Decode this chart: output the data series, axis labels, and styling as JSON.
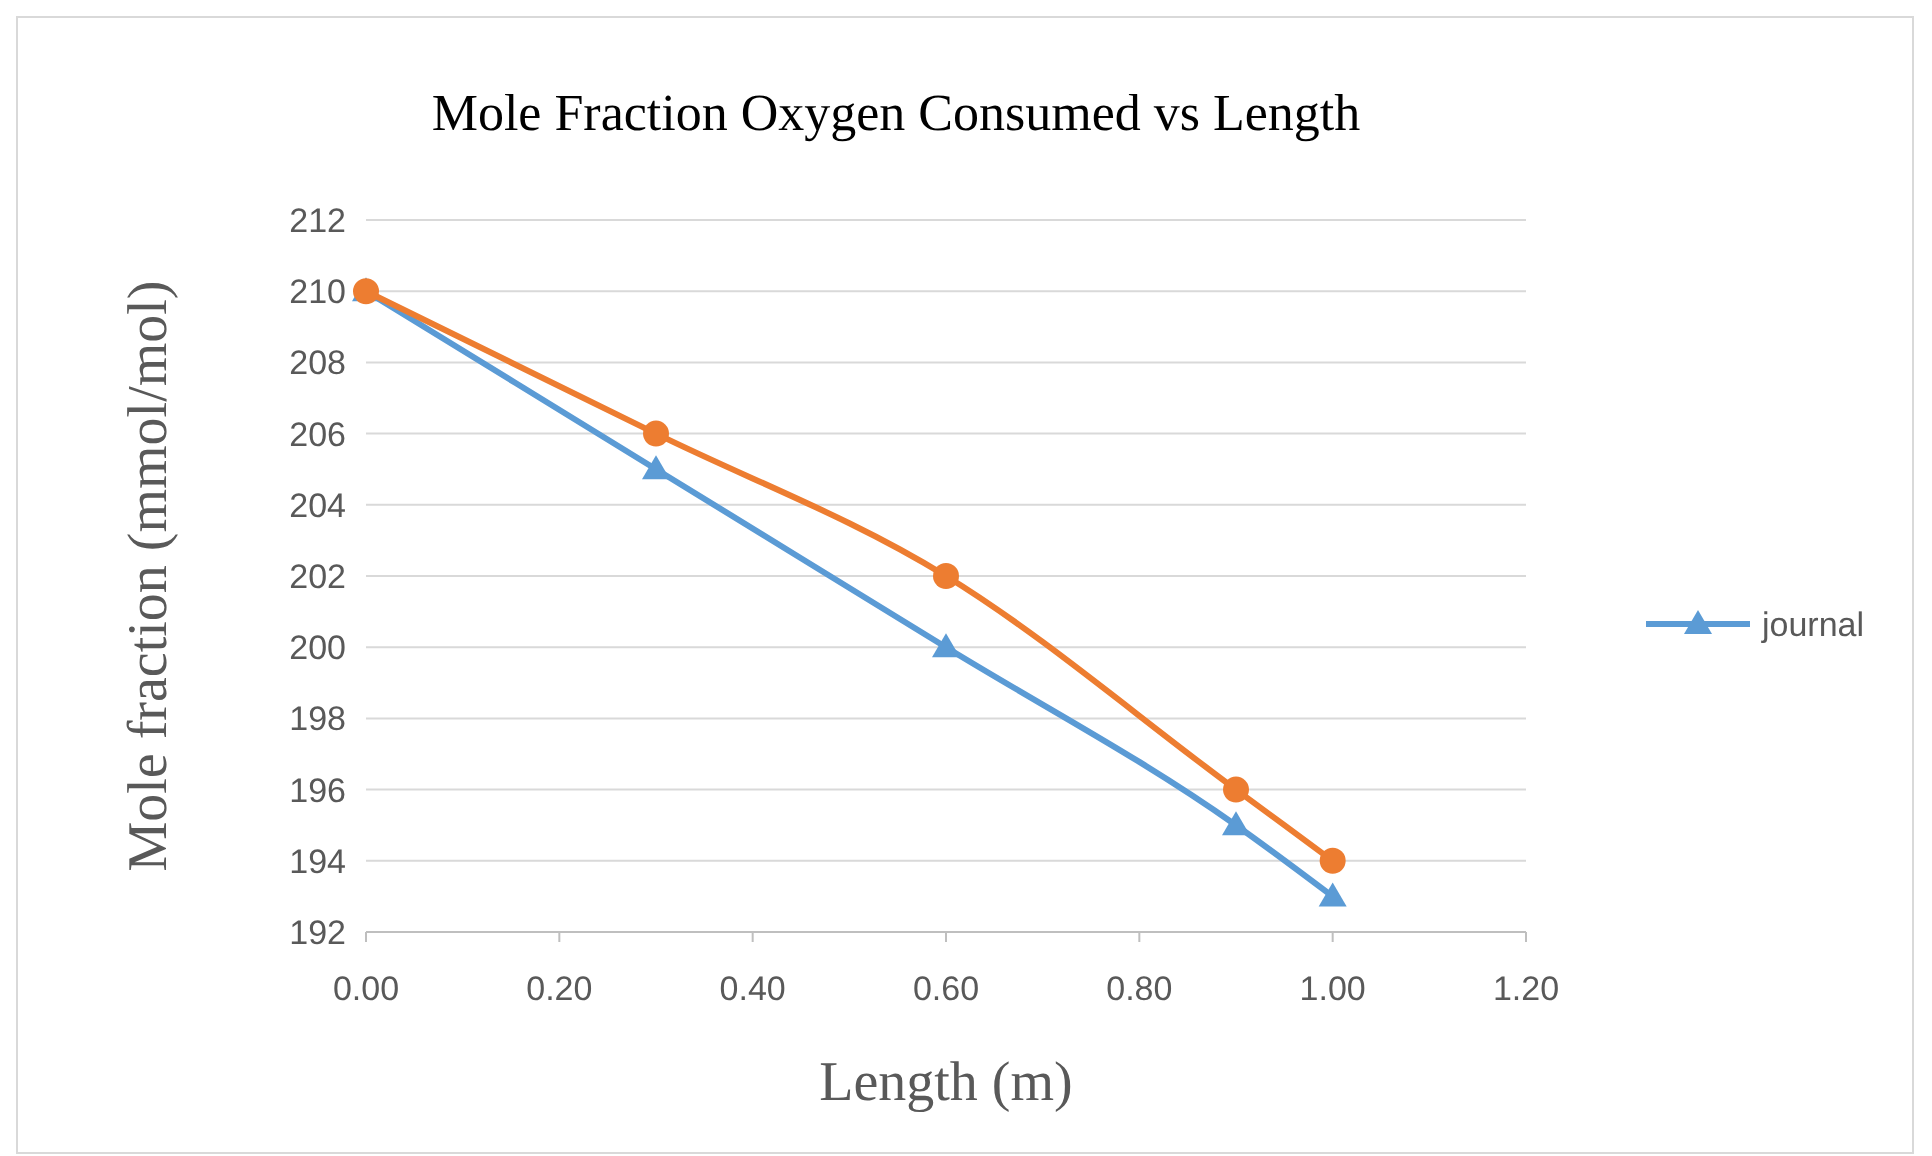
{
  "chart_data": {
    "type": "line",
    "title": "Mole Fraction Oxygen Consumed vs Length",
    "xlabel": "Length (m)",
    "ylabel": "Mole fraction (mmol/mol)",
    "x": [
      0,
      0.3,
      0.6,
      0.9,
      1.0
    ],
    "series": [
      {
        "name": "journal",
        "color": "#5b9bd5",
        "marker": "triangle",
        "values": [
          210,
          205,
          200,
          195,
          193
        ]
      },
      {
        "color": "#ed7d31",
        "marker": "circle",
        "values": [
          210,
          206,
          202,
          196,
          194
        ]
      }
    ],
    "xlim": [
      0,
      1.2
    ],
    "xticks": [
      {
        "value": 0,
        "label": "0.00"
      },
      {
        "value": 0.2,
        "label": "0.20"
      },
      {
        "value": 0.4,
        "label": "0.40"
      },
      {
        "value": 0.6,
        "label": "0.60"
      },
      {
        "value": 0.8,
        "label": "0.80"
      },
      {
        "value": 1,
        "label": "1.00"
      },
      {
        "value": 1.2,
        "label": "1.20"
      }
    ],
    "ylim": [
      192,
      212
    ],
    "yticks": [
      192,
      194,
      196,
      198,
      200,
      202,
      204,
      206,
      208,
      210,
      212
    ],
    "grid": "y",
    "legend": "right",
    "line_style": "solid"
  }
}
